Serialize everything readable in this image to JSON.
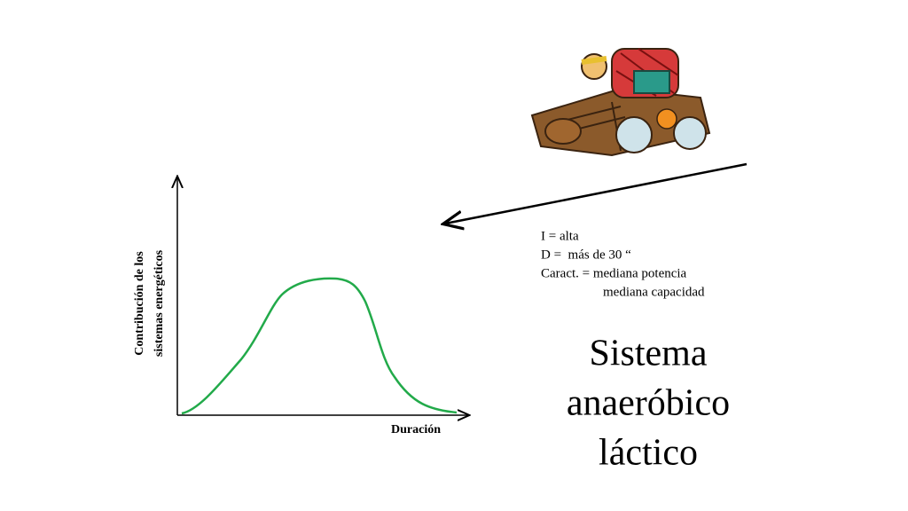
{
  "graph": {
    "y_label_lines": [
      "Contribución de los",
      "sistemas energéticos"
    ],
    "x_label": "Duración"
  },
  "notes": [
    "I = alta",
    "D =  más de 30 “",
    "Caract. = mediana potencia",
    "mediana capacidad"
  ],
  "title_lines": [
    "Sistema",
    "anaeróbico",
    "láctico"
  ]
}
